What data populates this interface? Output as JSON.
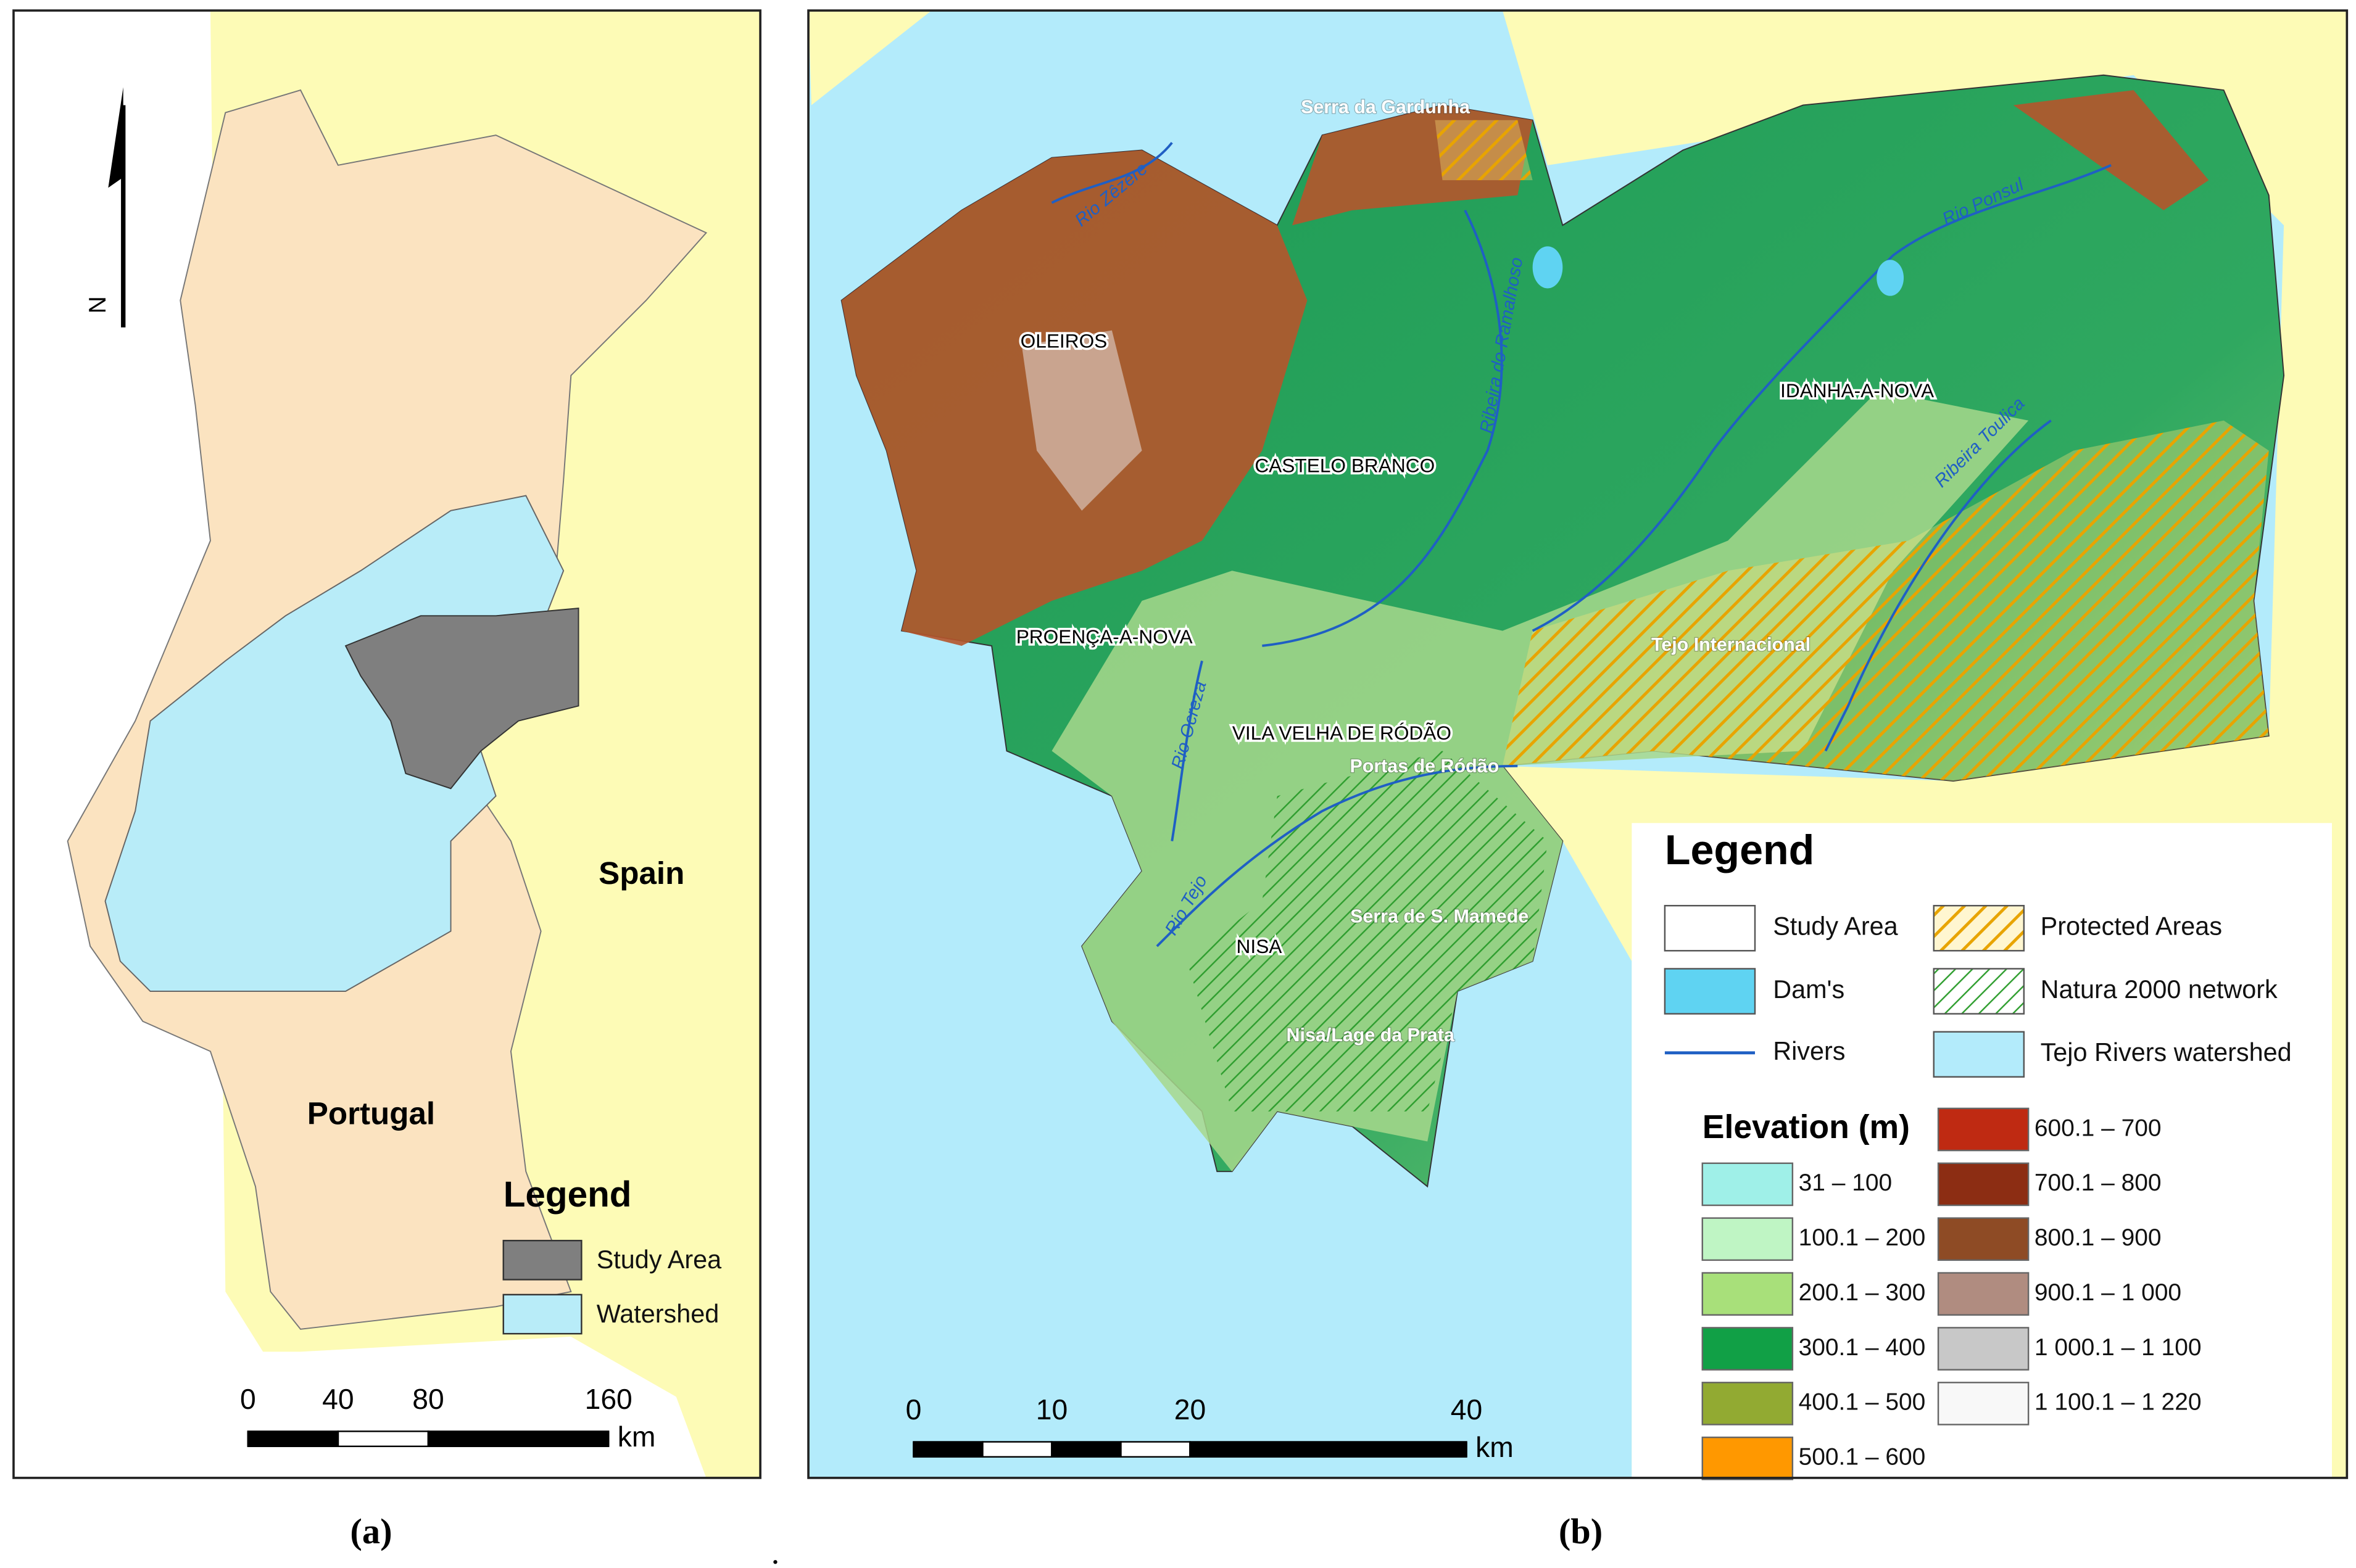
{
  "panel_a": {
    "caption": "(a)",
    "north": "N",
    "country_labels": [
      "Spain",
      "Portugal"
    ],
    "legend": {
      "title": "Legend",
      "items": [
        "Study Area",
        "Watershed"
      ]
    },
    "scale": {
      "ticks": [
        0,
        40,
        80,
        160
      ],
      "unit": "km"
    }
  },
  "panel_b": {
    "caption": "(b)",
    "places": [
      "Serra da Gardunha",
      "OLEIROS",
      "CASTELO BRANCO",
      "IDANHA-A-NOVA",
      "PROENÇA-A-NOVA",
      "VILA VELHA DE RÓDÃO",
      "Portas de Ródão",
      "Tejo Internacional",
      "Serra de S. Mamede",
      "NISA",
      "Nisa/Lage da Prata"
    ],
    "rivers": [
      "Rio Zêzere",
      "Rio Ponsul",
      "Ribeira do Ramalhoso",
      "Ribeira Toulica",
      "Rio Ocreza",
      "Rio Tejo"
    ],
    "legend": {
      "title": "Legend",
      "items": [
        "Study Area",
        "Dam's",
        "Rivers",
        "Protected Areas",
        "Natura 2000 network",
        "Tejo Rivers watershed"
      ],
      "elevation_title": "Elevation (m)",
      "elevation": [
        {
          "label": "31 – 100",
          "color": "#9ff0e8"
        },
        {
          "label": "100.1 – 200",
          "color": "#bff5c4"
        },
        {
          "label": "200.1 – 300",
          "color": "#a8e07a"
        },
        {
          "label": "300.1 – 400",
          "color": "#11a046"
        },
        {
          "label": "400.1 – 500",
          "color": "#92aa32"
        },
        {
          "label": "500.1 – 600",
          "color": "#ff9800"
        },
        {
          "label": "600.1 – 700",
          "color": "#bf2a12"
        },
        {
          "label": "700.1 – 800",
          "color": "#8c2d13"
        },
        {
          "label": "800.1 – 900",
          "color": "#8e4b25"
        },
        {
          "label": "900.1 – 1 000",
          "color": "#b08c80"
        },
        {
          "label": "1 000.1 – 1 100",
          "color": "#c8c8c8"
        },
        {
          "label": "1 100.1 – 1 220",
          "color": "#f8f8f8"
        }
      ]
    },
    "scale": {
      "ticks": [
        0,
        10,
        20,
        40
      ],
      "unit": "km"
    }
  }
}
